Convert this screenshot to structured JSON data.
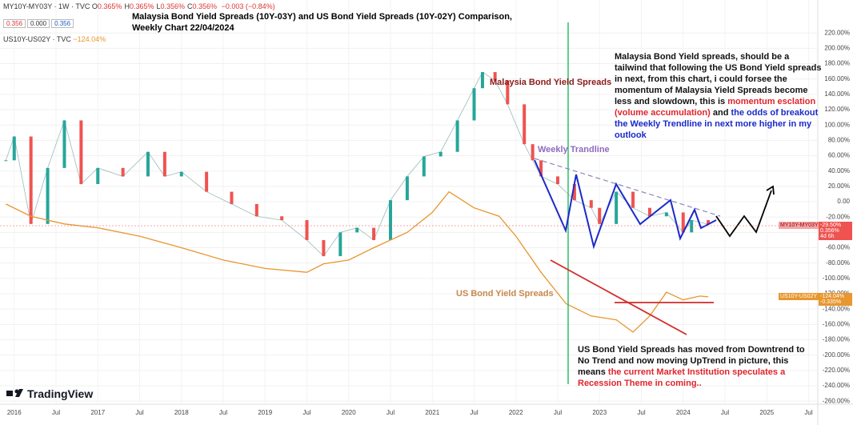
{
  "header": {
    "symbol": "MY10Y-MY03Y · 1W · TVC",
    "ohlc": [
      {
        "k": "O",
        "v": "0.365%"
      },
      {
        "k": "H",
        "v": "0.365%"
      },
      {
        "k": "L",
        "v": "0.356%"
      },
      {
        "k": "C",
        "v": "0.356%"
      }
    ],
    "change": "−0.003 (−0.84%)",
    "boxes": [
      "0.356",
      "0.000",
      "0.356"
    ],
    "symbol2": "US10Y-US02Y · TVC",
    "value2": "−124.04%"
  },
  "chart_data": {
    "type": "line",
    "title": [
      "Malaysia Bond Yield Spreads (10Y-03Y) and US Bond Yield Spreads (10Y-02Y) Comparison,",
      "Weekly Chart 22/04/2024"
    ],
    "xlim": [
      2015.83,
      2025.61
    ],
    "ylim": [
      -264,
      263
    ],
    "xticks": [
      {
        "value": 2016,
        "label": "2016"
      },
      {
        "value": 2016.5,
        "label": "Jul"
      },
      {
        "value": 2017,
        "label": "2017"
      },
      {
        "value": 2017.5,
        "label": "Jul"
      },
      {
        "value": 2018,
        "label": "2018"
      },
      {
        "value": 2018.5,
        "label": "Jul"
      },
      {
        "value": 2019,
        "label": "2019"
      },
      {
        "value": 2019.5,
        "label": "Jul"
      },
      {
        "value": 2020,
        "label": "2020"
      },
      {
        "value": 2020.5,
        "label": "Jul"
      },
      {
        "value": 2021,
        "label": "2021"
      },
      {
        "value": 2021.5,
        "label": "Jul"
      },
      {
        "value": 2022,
        "label": "2022"
      },
      {
        "value": 2022.5,
        "label": "Jul"
      },
      {
        "value": 2023,
        "label": "2023"
      },
      {
        "value": 2023.5,
        "label": "Jul"
      },
      {
        "value": 2024,
        "label": "2024"
      },
      {
        "value": 2024.5,
        "label": "Jul"
      },
      {
        "value": 2025,
        "label": "2025"
      },
      {
        "value": 2025.5,
        "label": "Jul"
      }
    ],
    "yticks": [
      {
        "value": 220,
        "label": "220.00%"
      },
      {
        "value": 200,
        "label": "200.00%"
      },
      {
        "value": 180,
        "label": "180.00%"
      },
      {
        "value": 160,
        "label": "160.00%"
      },
      {
        "value": 140,
        "label": "140.00%"
      },
      {
        "value": 120,
        "label": "120.00%"
      },
      {
        "value": 100,
        "label": "100.00%"
      },
      {
        "value": 80,
        "label": "80.00%"
      },
      {
        "value": 60,
        "label": "60.00%"
      },
      {
        "value": 40,
        "label": "40.00%"
      },
      {
        "value": 20,
        "label": "20.00%"
      },
      {
        "value": 0,
        "label": "0.00"
      },
      {
        "value": -20,
        "label": "-20.00%"
      },
      {
        "value": -40,
        "label": "-40.00%"
      },
      {
        "value": -60,
        "label": "-60.00%"
      },
      {
        "value": -80,
        "label": "-80.00%"
      },
      {
        "value": -100,
        "label": "-100.00%"
      },
      {
        "value": -120,
        "label": "-120.00%"
      },
      {
        "value": -140,
        "label": "-140.00%"
      },
      {
        "value": -160,
        "label": "-160.00%"
      },
      {
        "value": -180,
        "label": "-180.00%"
      },
      {
        "value": -200,
        "label": "-200.00%"
      },
      {
        "value": -220,
        "label": "-220.00%"
      },
      {
        "value": -240,
        "label": "-240.00%"
      },
      {
        "value": -260,
        "label": "-260.00%"
      }
    ],
    "series": [
      {
        "name": "Malaysia Bond Yield Spreads",
        "color": "#26a69a",
        "down_color": "#ef5350",
        "x": [
          2015.9,
          2016.0,
          2016.2,
          2016.4,
          2016.6,
          2016.8,
          2017.0,
          2017.3,
          2017.6,
          2017.8,
          2018.0,
          2018.3,
          2018.6,
          2018.9,
          2019.2,
          2019.5,
          2019.7,
          2019.9,
          2020.1,
          2020.3,
          2020.5,
          2020.7,
          2020.9,
          2021.1,
          2021.3,
          2021.5,
          2021.6,
          2021.75,
          2021.9,
          2022.1,
          2022.2,
          2022.3,
          2022.5,
          2022.7,
          2022.9,
          2023.0,
          2023.2,
          2023.4,
          2023.6,
          2023.8,
          2024.0,
          2024.1,
          2024.3
        ],
        "values": [
          54,
          85,
          -29,
          44,
          106,
          23,
          44,
          33,
          65,
          33,
          39,
          13,
          -3,
          -19,
          -24,
          -50,
          -71,
          -40,
          -34,
          -50,
          2,
          33,
          59,
          65,
          106,
          148,
          169,
          158,
          127,
          75,
          54,
          33,
          23,
          2,
          -8,
          -29,
          13,
          -8,
          -19,
          -14,
          -40,
          -24,
          -29.5
        ]
      },
      {
        "name": "US Bond Yield Spreads",
        "color": "#e8962e",
        "x": [
          2015.9,
          2016.2,
          2016.6,
          2017.0,
          2017.5,
          2018.0,
          2018.5,
          2019.0,
          2019.5,
          2019.7,
          2020.0,
          2020.3,
          2020.7,
          2021.0,
          2021.2,
          2021.5,
          2021.8,
          2022.0,
          2022.3,
          2022.6,
          2022.9,
          2023.2,
          2023.4,
          2023.6,
          2023.8,
          2024.0,
          2024.2,
          2024.3
        ],
        "values": [
          -3,
          -19,
          -29,
          -34,
          -45,
          -60,
          -76,
          -87,
          -92,
          -81,
          -76,
          -60,
          -40,
          -14,
          13,
          -8,
          -19,
          -45,
          -92,
          -133,
          -149,
          -154,
          -170,
          -149,
          -118,
          -128,
          -123,
          -124
        ]
      }
    ],
    "price_labels": {
      "my_name": "MY10Y-MY03Y",
      "my_value": "-29.50%",
      "my_raw": "0.356%",
      "my_time": "4d 6h",
      "us_name": "US10Y-US02Y",
      "us_value": "-124.04%",
      "us_raw": "-0.335%"
    },
    "annotations": {
      "my_label": "Malaysia Bond Yield Spreads",
      "trend_label": "Weekly Trandline",
      "us_label": "US Bond Yield Spreads",
      "right_note": [
        "Malaysia Bond Yield spreads, should be a tailwind that following the US Bond Yield spreads in next, from this chart, i could forsee the momentum of Malaysia Yield Spreads become less and slowdown, this is ",
        "momentum esclation (volume accumulation)",
        " and ",
        "the odds of breakout the Weekly Trendline in next more higher in my outlook"
      ],
      "bottom_note": [
        "US Bond Yield Spreads has moved from Downtrend to No Trend and now moving UpTrend in picture, this means ",
        "the current Market Institution speculates a Recession Theme in coming.."
      ]
    },
    "logo": "TradingView"
  }
}
